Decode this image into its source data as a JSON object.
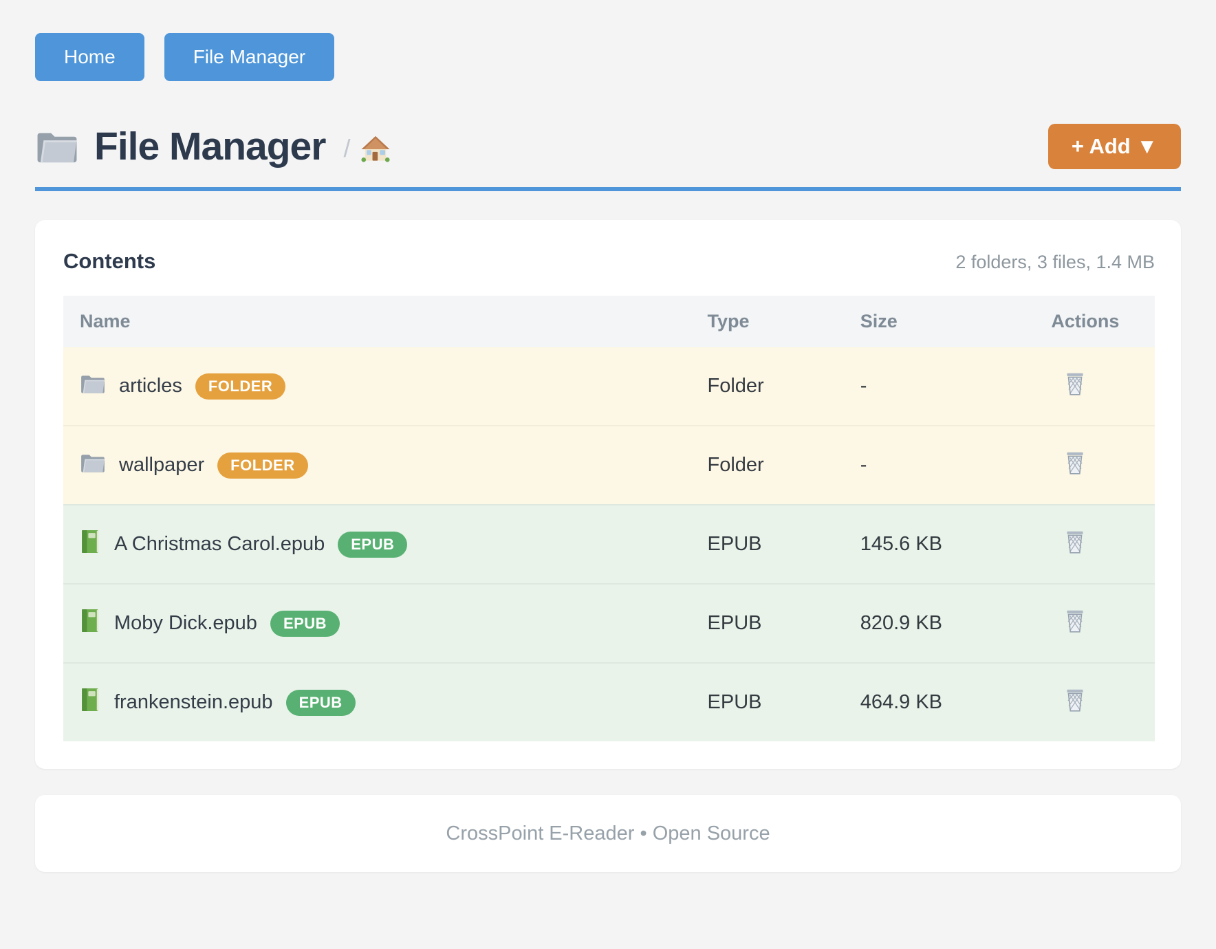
{
  "nav": {
    "home_label": "Home",
    "file_manager_label": "File Manager"
  },
  "header": {
    "title": "File Manager",
    "breadcrumb_separator": "/",
    "home_icon": "home-icon",
    "folder_icon": "folder-icon",
    "add_button_label": "+ Add ▼"
  },
  "panel": {
    "title": "Contents",
    "summary": "2 folders, 3 files, 1.4 MB",
    "columns": {
      "name": "Name",
      "type": "Type",
      "size": "Size",
      "actions": "Actions"
    },
    "rows": [
      {
        "icon": "folder-icon",
        "name": "articles",
        "badge": "FOLDER",
        "kind": "folder",
        "type": "Folder",
        "size": "-",
        "action_icon": "trash-icon"
      },
      {
        "icon": "folder-icon",
        "name": "wallpaper",
        "badge": "FOLDER",
        "kind": "folder",
        "type": "Folder",
        "size": "-",
        "action_icon": "trash-icon"
      },
      {
        "icon": "book-icon",
        "name": "A Christmas Carol.epub",
        "badge": "EPUB",
        "kind": "epub",
        "type": "EPUB",
        "size": "145.6 KB",
        "action_icon": "trash-icon"
      },
      {
        "icon": "book-icon",
        "name": "Moby Dick.epub",
        "badge": "EPUB",
        "kind": "epub",
        "type": "EPUB",
        "size": "820.9 KB",
        "action_icon": "trash-icon"
      },
      {
        "icon": "book-icon",
        "name": "frankenstein.epub",
        "badge": "EPUB",
        "kind": "epub",
        "type": "EPUB",
        "size": "464.9 KB",
        "action_icon": "trash-icon"
      }
    ]
  },
  "footer": {
    "text": "CrossPoint E-Reader • Open Source"
  },
  "colors": {
    "accent_blue": "#4e96d9",
    "accent_orange": "#d9823b",
    "badge_folder": "#e5a13e",
    "badge_epub": "#58b172",
    "row_folder_bg": "#fdf7e5",
    "row_epub_bg": "#e9f3ea",
    "title_text": "#2d3a4d"
  }
}
